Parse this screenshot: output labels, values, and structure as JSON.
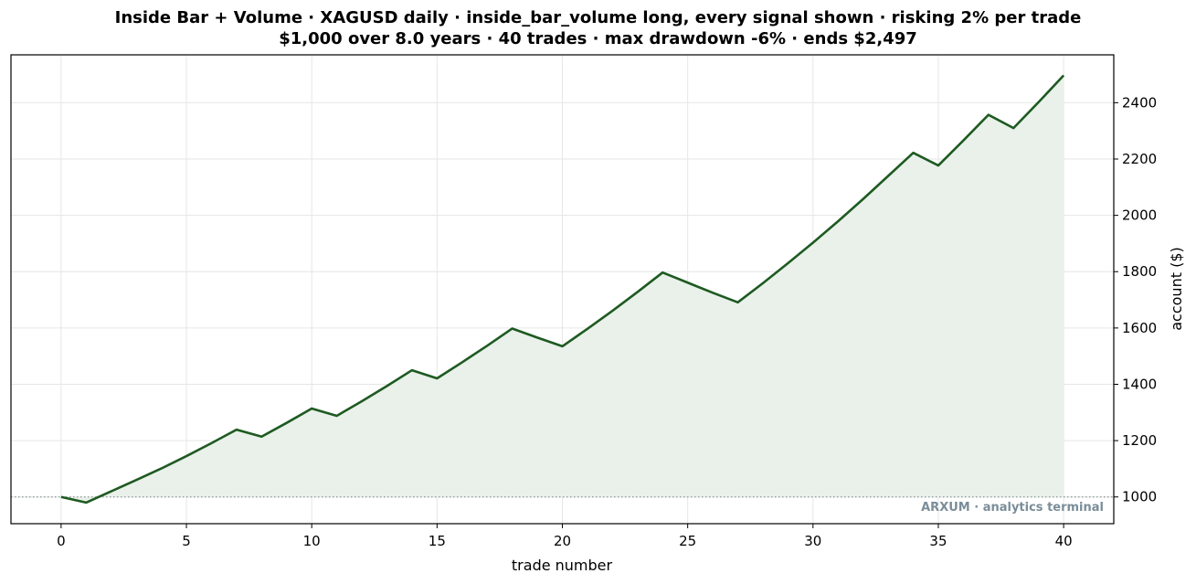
{
  "chart_data": {
    "type": "area",
    "title": "Inside Bar + Volume · XAGUSD daily · inside_bar_volume long, every signal shown · risking 2% per trade",
    "subtitle": "$1,000 over 8.0 years · 40 trades · max drawdown -6% · ends $2,497",
    "xlabel": "trade number",
    "ylabel": "account ($)",
    "xlim": [
      -2,
      42
    ],
    "ylim": [
      905,
      2570
    ],
    "xticks": [
      0,
      5,
      10,
      15,
      20,
      25,
      30,
      35,
      40
    ],
    "yticks": [
      1000,
      1200,
      1400,
      1600,
      1800,
      2000,
      2200,
      2400
    ],
    "y_axis_side": "right",
    "grid": true,
    "baseline": 1000,
    "line_color": "#1e5a21",
    "fill_color": "#e9f1ea",
    "x": [
      0,
      1,
      2,
      3,
      4,
      5,
      6,
      7,
      8,
      9,
      10,
      11,
      12,
      13,
      14,
      15,
      16,
      17,
      18,
      19,
      20,
      21,
      22,
      23,
      24,
      25,
      26,
      27,
      28,
      29,
      30,
      31,
      32,
      33,
      34,
      35,
      36,
      37,
      38,
      39,
      40
    ],
    "values": [
      1000,
      980,
      1020,
      1060,
      1101,
      1145,
      1191,
      1239,
      1214,
      1263,
      1314,
      1288,
      1340,
      1394,
      1450,
      1421,
      1478,
      1537,
      1598,
      1566,
      1535,
      1597,
      1661,
      1728,
      1797,
      1761,
      1725,
      1691,
      1759,
      1830,
      1903,
      1979,
      2058,
      2140,
      2222,
      2177,
      2266,
      2357,
      2310,
      2402,
      2497
    ],
    "annotation": "ARXUM · analytics terminal"
  }
}
